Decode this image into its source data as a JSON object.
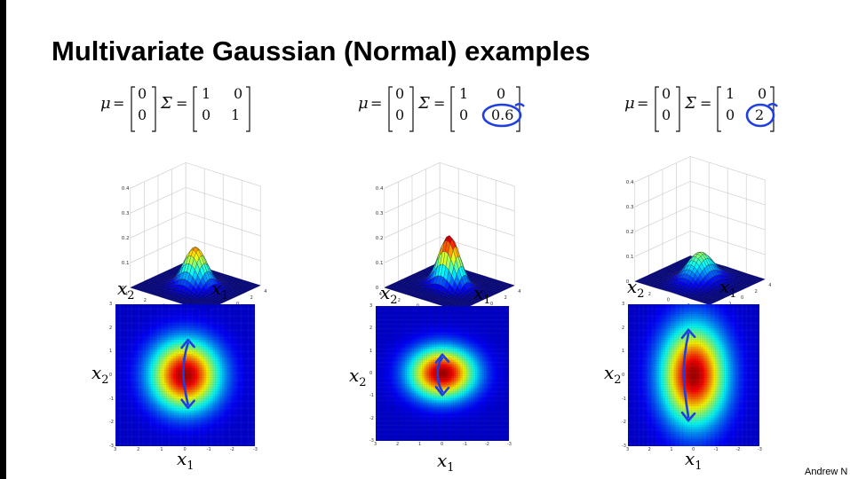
{
  "slide": {
    "title": "Multivariate Gaussian (Normal) examples",
    "footer": "Andrew N"
  },
  "panels": [
    {
      "mu_symbol": "μ",
      "sigma_symbol": "Σ",
      "equals": "=",
      "mu": [
        "0",
        "0"
      ],
      "sigma": [
        [
          "1",
          "0"
        ],
        [
          "0",
          "1"
        ]
      ],
      "covariance": {
        "s11": 1,
        "s22": 1
      },
      "circled_entry": "",
      "annotation": "vertical double arrow drawn on heatmap",
      "x1_label": "x",
      "x2_label": "x",
      "sub1": "1",
      "sub2": "2"
    },
    {
      "mu_symbol": "μ",
      "sigma_symbol": "Σ",
      "equals": "=",
      "mu": [
        "0",
        "0"
      ],
      "sigma": [
        [
          "1",
          "0"
        ],
        [
          "0",
          "0.6"
        ]
      ],
      "covariance": {
        "s11": 1,
        "s22": 0.6
      },
      "circled_entry": "0.6",
      "x1_label": "x",
      "x2_label": "x",
      "sub1": "1",
      "sub2": "2"
    },
    {
      "mu_symbol": "μ",
      "sigma_symbol": "Σ",
      "equals": "=",
      "mu": [
        "0",
        "0"
      ],
      "sigma": [
        [
          "1",
          "0"
        ],
        [
          "0",
          "2"
        ]
      ],
      "covariance": {
        "s11": 1,
        "s22": 2
      },
      "circled_entry": "2",
      "x1_label": "x",
      "x2_label": "x",
      "sub1": "1",
      "sub2": "2"
    }
  ],
  "surface_z_ticks": [
    "0.4",
    "0.3",
    "0.2",
    "0.1",
    "0"
  ],
  "surface_grid_ticks": [
    "4",
    "2",
    "0",
    "-2",
    "-4"
  ],
  "heatmap_ticks": [
    "3",
    "2",
    "1",
    "0",
    "-1",
    "-2",
    "-3"
  ],
  "annotation_color": "#1f3fe0",
  "colormap": "jet"
}
